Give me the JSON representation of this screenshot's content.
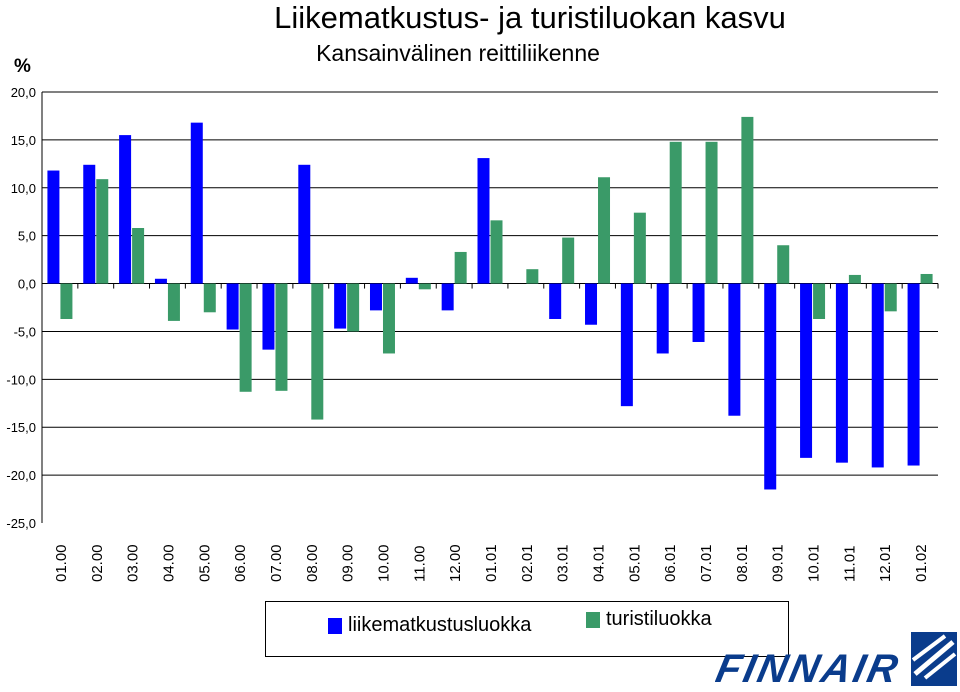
{
  "chart_data": {
    "type": "bar",
    "title": "Liikematkustus- ja turistiluokan kasvu",
    "subtitle": "Kansainvälinen reittiliikenne",
    "ylabel": "%",
    "ylim": [
      -25,
      20
    ],
    "yticks": [
      "20,0",
      "15,0",
      "10,0",
      "5,0",
      "0,0",
      "-5,0",
      "-10,0",
      "-15,0",
      "-20,0",
      "-25,0"
    ],
    "ytick_values": [
      20,
      15,
      10,
      5,
      0,
      -5,
      -10,
      -15,
      -20,
      -25
    ],
    "categories": [
      "01.00",
      "02.00",
      "03.00",
      "04.00",
      "05.00",
      "06.00",
      "07.00",
      "08.00",
      "09.00",
      "10.00",
      "11.00",
      "12.00",
      "01.01",
      "02.01",
      "03.01",
      "04.01",
      "05.01",
      "06.01",
      "07.01",
      "08.01",
      "09.01",
      "10.01",
      "11.01",
      "12.01",
      "01.02"
    ],
    "series": [
      {
        "name": "liikematkustusluokka",
        "color": "#0000ff",
        "values": [
          11.8,
          12.4,
          15.5,
          0.5,
          16.8,
          -4.8,
          -6.9,
          12.4,
          -4.7,
          -2.8,
          0.6,
          -2.8,
          13.1,
          0,
          -3.7,
          -4.3,
          -12.8,
          -7.3,
          -6.1,
          -13.8,
          -21.5,
          -18.2,
          -18.7,
          -19.2,
          -19.0
        ]
      },
      {
        "name": "turistiluokka",
        "color": "#3a9a68",
        "values": [
          -3.7,
          10.9,
          5.8,
          -3.9,
          -3.0,
          -11.3,
          -11.2,
          -14.2,
          -5.0,
          -7.3,
          -0.6,
          3.3,
          6.6,
          1.5,
          4.8,
          11.1,
          7.4,
          14.8,
          14.8,
          17.4,
          4.0,
          -3.7,
          0.9,
          -2.9,
          1.0
        ]
      }
    ],
    "gridlines": "horizontal",
    "legend_position": "bottom"
  },
  "legend": {
    "series1": "liikematkustusluokka",
    "series2": "turistiluokka"
  },
  "logo": {
    "text": "FINNAIR",
    "color": "#0a3c8c"
  }
}
